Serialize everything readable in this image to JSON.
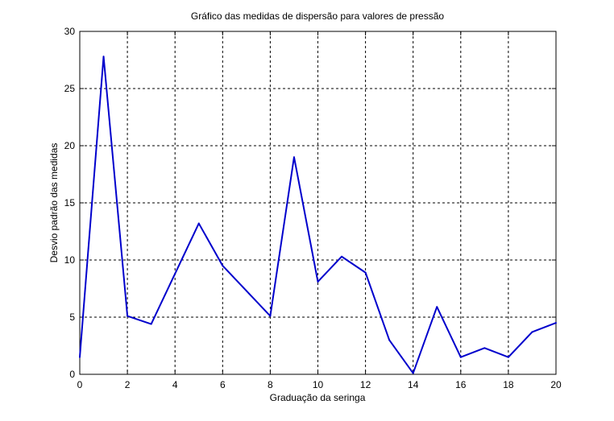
{
  "chart_data": {
    "type": "line",
    "title": "Gráfico das medidas de dispersão para valores de pressão",
    "xlabel": "Graduação da seringa",
    "ylabel": "Desvio padrão das medidas",
    "xlim": [
      0,
      20
    ],
    "ylim": [
      0,
      30
    ],
    "xticks": [
      "0",
      "2",
      "4",
      "6",
      "8",
      "10",
      "12",
      "14",
      "16",
      "18",
      "20"
    ],
    "yticks": [
      "0",
      "5",
      "10",
      "15",
      "20",
      "25",
      "30"
    ],
    "grid": true,
    "series": [
      {
        "color": "#0000cc",
        "x": [
          0,
          1,
          2,
          3,
          4,
          5,
          6,
          7,
          8,
          9,
          10,
          11,
          12,
          13,
          14,
          15,
          16,
          17,
          18,
          19,
          20
        ],
        "y": [
          1.5,
          27.8,
          5.1,
          4.4,
          8.8,
          13.2,
          9.5,
          7.3,
          5.1,
          19.0,
          8.1,
          10.3,
          8.9,
          3.0,
          0.1,
          5.9,
          1.5,
          2.3,
          1.5,
          3.7,
          4.5
        ]
      }
    ]
  }
}
